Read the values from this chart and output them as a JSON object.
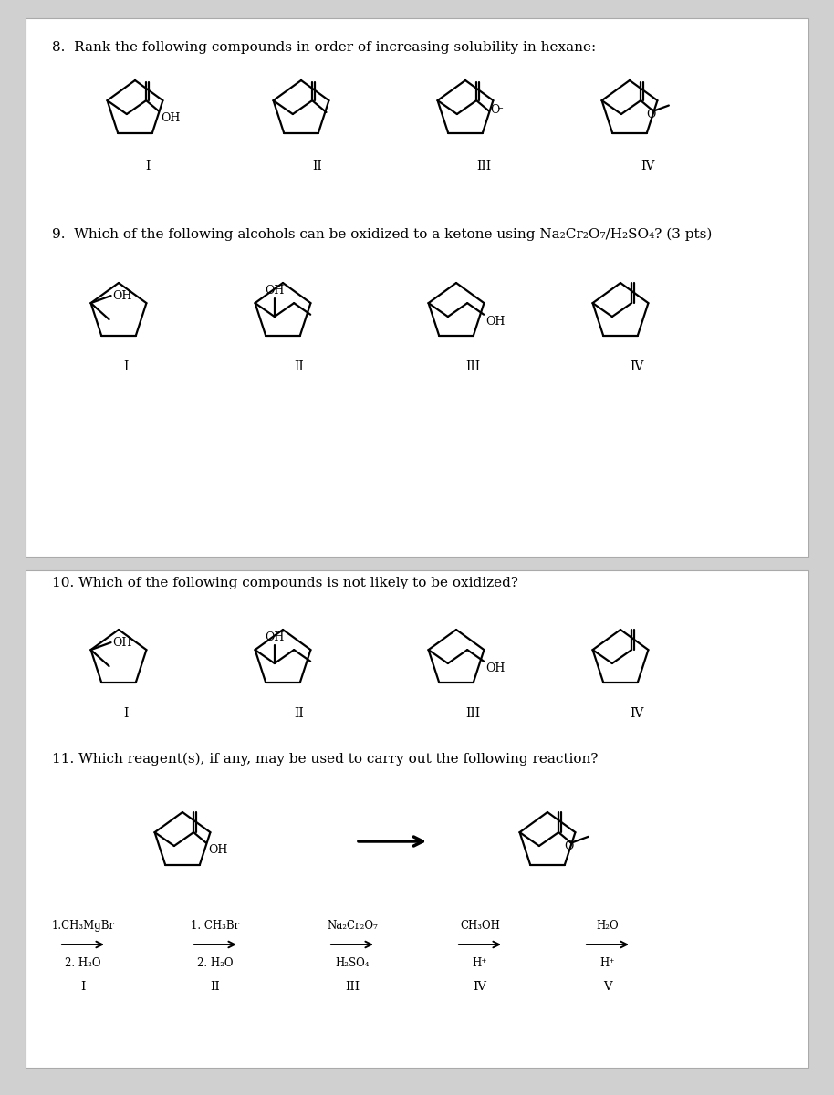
{
  "bg_top": "#e8e8e8",
  "bg_bottom": "#e8e8e8",
  "page_bg": "#ffffff",
  "q8_text": "8.  Rank the following compounds in order of increasing solubility in hexane:",
  "q9_text": "9.  Which of the following alcohols can be oxidized to a ketone using Na₂Cr₂O₇/H₂SO₄? (3 pts)",
  "q10_text": "10. Which of the following compounds is not likely to be oxidized?",
  "q11_text": "11. Which reagent(s), if any, may be used to carry out the following reaction?",
  "lw": 1.6
}
